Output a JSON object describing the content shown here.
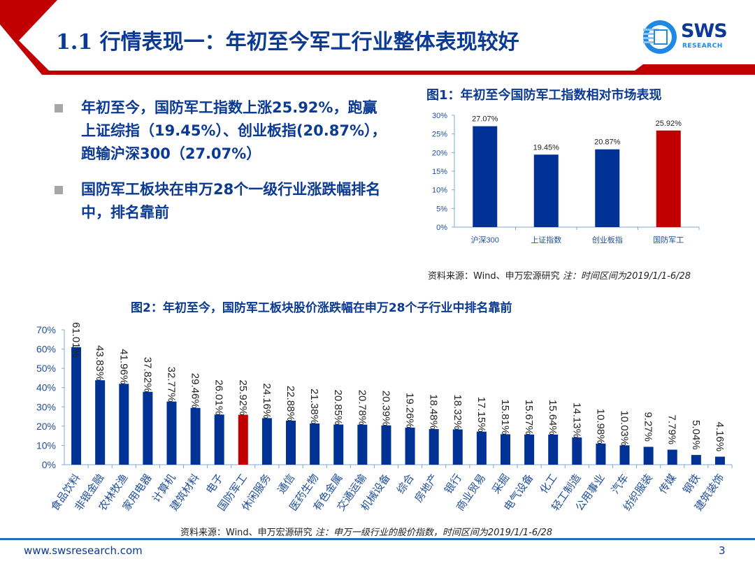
{
  "header": {
    "title": "1.1 行情表现一：年初至今军工行业整体表现较好",
    "logo_text": "SWS",
    "logo_subtext": "RESEARCH",
    "accent_red": "#C00000",
    "accent_blue": "#0B3A94"
  },
  "bullets": [
    {
      "text": "年初至今，国防军工指数上涨25.92%，跑赢上证综指（19.45%）、创业板指(20.87%），跑输沪深300（27.07%）"
    },
    {
      "text": "国防军工板块在申万28个一级行业涨跌幅排名中，排名靠前"
    }
  ],
  "chart_data": [
    {
      "type": "bar",
      "title": "图1：年初至今国防军工指数相对市场表现",
      "categories": [
        "沪深300",
        "上证指数",
        "创业板指",
        "国防军工"
      ],
      "values": [
        27.07,
        19.45,
        20.87,
        25.92
      ],
      "data_labels": [
        "27.07%",
        "19.45%",
        "20.87%",
        "25.92%"
      ],
      "highlight_index": 3,
      "ylim": [
        0,
        30
      ],
      "yticks": [
        "0%",
        "5%",
        "10%",
        "15%",
        "20%",
        "25%",
        "30%"
      ],
      "ytick_values": [
        0,
        5,
        10,
        15,
        20,
        25,
        30
      ],
      "xlabel": "",
      "ylabel": "",
      "grid": false,
      "bar_color": "#003296",
      "highlight_color": "#C00000",
      "source": "资料来源：Wind、申万宏源研究",
      "note": "注：时间区间为2019/1/1-6/28"
    },
    {
      "type": "bar",
      "title": "图2：年初至今，国防军工板块股价涨跌幅在申万28个子行业中排名靠前",
      "categories": [
        "食品饮料",
        "非银金融",
        "农林牧渔",
        "家用电器",
        "计算机",
        "建筑材料",
        "电子",
        "国防军工",
        "休闲服务",
        "通信",
        "医药生物",
        "有色金属",
        "交通运输",
        "机械设备",
        "综合",
        "房地产",
        "银行",
        "商业贸易",
        "采掘",
        "电气设备",
        "化工",
        "轻工制造",
        "公用事业",
        "汽车",
        "纺织服装",
        "传媒",
        "钢铁",
        "建筑装饰"
      ],
      "values": [
        61.01,
        43.83,
        41.96,
        37.82,
        32.77,
        29.46,
        26.01,
        25.92,
        24.16,
        22.88,
        21.38,
        20.85,
        20.78,
        20.39,
        19.26,
        18.48,
        18.32,
        17.15,
        15.81,
        15.67,
        15.64,
        14.13,
        10.98,
        10.03,
        9.27,
        7.79,
        5.04,
        4.16
      ],
      "data_labels": [
        "61.01%",
        "43.83%",
        "41.96%",
        "37.82%",
        "32.77%",
        "29.46%",
        "26.01%",
        "25.92%",
        "24.16%",
        "22.88%",
        "21.38%",
        "20.85%",
        "20.78%",
        "20.39%",
        "19.26%",
        "18.48%",
        "18.32%",
        "17.15%",
        "15.81%",
        "15.67%",
        "15.64%",
        "14.13%",
        "10.98%",
        "10.03%",
        "9.27%",
        "7.79%",
        "5.04%",
        "4.16%"
      ],
      "highlight_index": 7,
      "ylim": [
        0,
        70
      ],
      "yticks": [
        "0%",
        "10%",
        "20%",
        "30%",
        "40%",
        "50%",
        "60%",
        "70%"
      ],
      "ytick_values": [
        0,
        10,
        20,
        30,
        40,
        50,
        60,
        70
      ],
      "xlabel": "",
      "ylabel": "",
      "grid": false,
      "bar_color": "#003296",
      "highlight_color": "#C00000",
      "source": "资料来源：Wind、申万宏源研究",
      "note": "注：申万一级行业的股价指数，时间区间为2019/1/1-6/28"
    }
  ],
  "footer": {
    "url": "www.swsresearch.com",
    "page": "3"
  }
}
